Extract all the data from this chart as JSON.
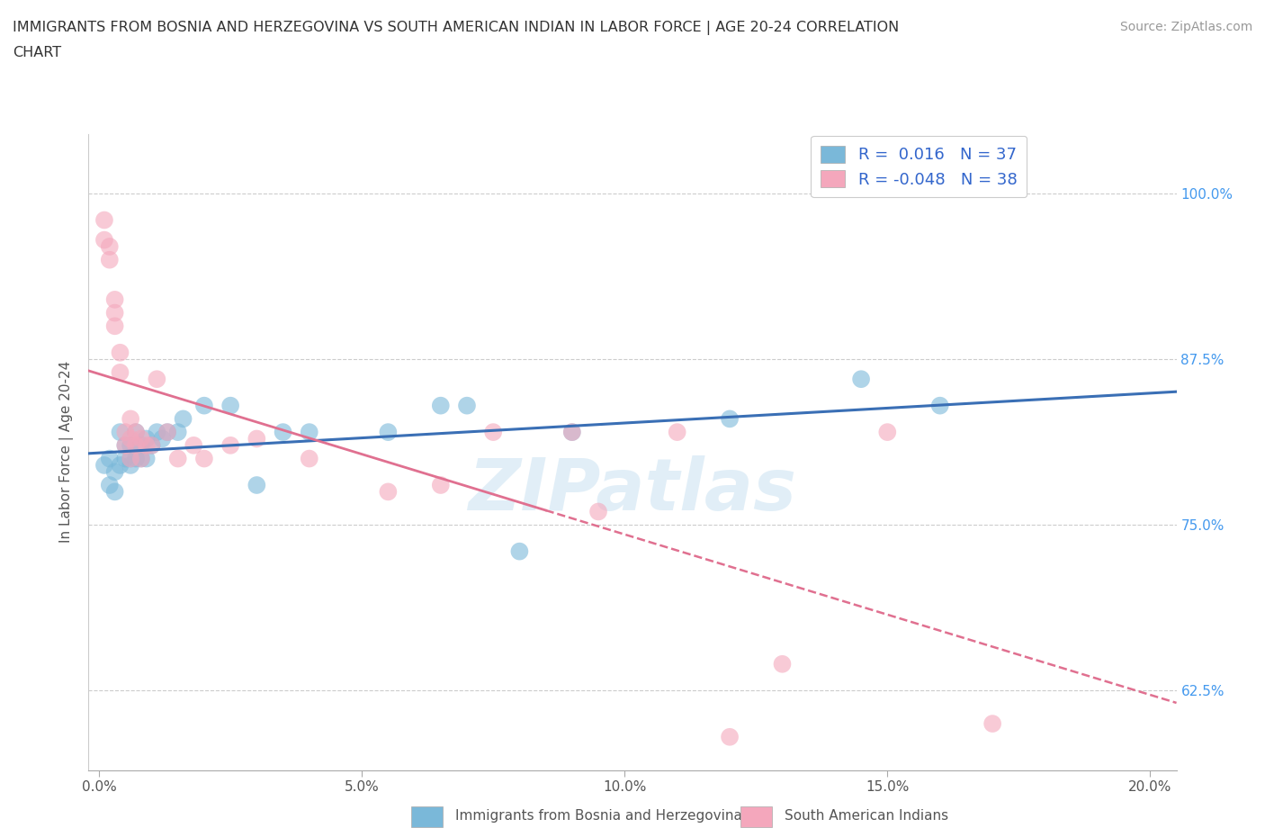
{
  "title_line1": "IMMIGRANTS FROM BOSNIA AND HERZEGOVINA VS SOUTH AMERICAN INDIAN IN LABOR FORCE | AGE 20-24 CORRELATION",
  "title_line2": "CHART",
  "source": "Source: ZipAtlas.com",
  "xlabel_ticks": [
    "0.0%",
    "5.0%",
    "10.0%",
    "15.0%",
    "20.0%"
  ],
  "xlabel_vals": [
    0.0,
    0.05,
    0.1,
    0.15,
    0.2
  ],
  "ylabel_ticks": [
    "62.5%",
    "75.0%",
    "87.5%",
    "100.0%"
  ],
  "ylabel_vals": [
    0.625,
    0.75,
    0.875,
    1.0
  ],
  "ylabel_label": "In Labor Force | Age 20-24",
  "xlim": [
    -0.002,
    0.205
  ],
  "ylim": [
    0.565,
    1.045
  ],
  "legend_blue_label": "Immigrants from Bosnia and Herzegovina",
  "legend_pink_label": "South American Indians",
  "r_blue": 0.016,
  "n_blue": 37,
  "r_pink": -0.048,
  "n_pink": 38,
  "blue_color": "#7ab8d9",
  "pink_color": "#f4a7bc",
  "blue_line_color": "#3a6fb5",
  "pink_line_color": "#e07090",
  "watermark": "ZIPatlas",
  "blue_scatter_x": [
    0.001,
    0.002,
    0.002,
    0.003,
    0.003,
    0.004,
    0.004,
    0.005,
    0.005,
    0.006,
    0.006,
    0.006,
    0.007,
    0.007,
    0.008,
    0.008,
    0.009,
    0.009,
    0.01,
    0.011,
    0.012,
    0.013,
    0.015,
    0.016,
    0.02,
    0.025,
    0.03,
    0.035,
    0.04,
    0.055,
    0.065,
    0.07,
    0.08,
    0.09,
    0.12,
    0.145,
    0.16
  ],
  "blue_scatter_y": [
    0.795,
    0.8,
    0.78,
    0.79,
    0.775,
    0.795,
    0.82,
    0.8,
    0.81,
    0.795,
    0.8,
    0.81,
    0.8,
    0.82,
    0.8,
    0.81,
    0.8,
    0.815,
    0.81,
    0.82,
    0.815,
    0.82,
    0.82,
    0.83,
    0.84,
    0.84,
    0.78,
    0.82,
    0.82,
    0.82,
    0.84,
    0.84,
    0.73,
    0.82,
    0.83,
    0.86,
    0.84
  ],
  "pink_scatter_x": [
    0.001,
    0.001,
    0.002,
    0.002,
    0.003,
    0.003,
    0.003,
    0.004,
    0.004,
    0.005,
    0.005,
    0.006,
    0.006,
    0.006,
    0.007,
    0.007,
    0.008,
    0.008,
    0.009,
    0.01,
    0.011,
    0.013,
    0.015,
    0.018,
    0.02,
    0.025,
    0.03,
    0.04,
    0.055,
    0.065,
    0.075,
    0.09,
    0.095,
    0.11,
    0.12,
    0.13,
    0.15,
    0.17
  ],
  "pink_scatter_y": [
    0.98,
    0.965,
    0.96,
    0.95,
    0.92,
    0.91,
    0.9,
    0.88,
    0.865,
    0.82,
    0.81,
    0.83,
    0.815,
    0.8,
    0.82,
    0.81,
    0.815,
    0.8,
    0.81,
    0.81,
    0.86,
    0.82,
    0.8,
    0.81,
    0.8,
    0.81,
    0.815,
    0.8,
    0.775,
    0.78,
    0.82,
    0.82,
    0.76,
    0.82,
    0.59,
    0.645,
    0.82,
    0.6
  ]
}
